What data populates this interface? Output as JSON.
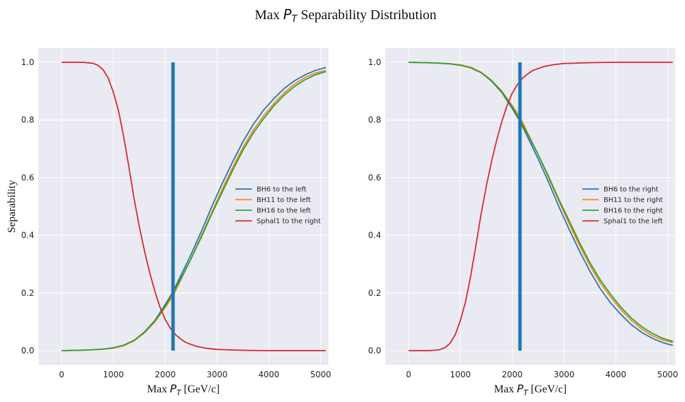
{
  "figure": {
    "suptitle_prefix": "Max ",
    "suptitle_var": "P",
    "suptitle_sub": "T",
    "suptitle_suffix": " Separability Distribution"
  },
  "colors": {
    "BH6": "#1f77b4",
    "BH11": "#ff7f0e",
    "BH16": "#2ca02c",
    "Sphal1": "#d62728",
    "cut": "#1f77b4",
    "panel_bg": "#eaeaf2",
    "grid": "#ffffff"
  },
  "chart_data": [
    {
      "type": "line",
      "xlabel_prefix": "Max ",
      "xlabel_var": "P",
      "xlabel_sub": "T",
      "xlabel_suffix": " [GeV/c]",
      "ylabel": "Separability",
      "xlim": [
        -450,
        5150
      ],
      "ylim": [
        -0.05,
        1.05
      ],
      "xticks": [
        0,
        1000,
        2000,
        3000,
        4000,
        5000
      ],
      "yticks": [
        0.0,
        0.2,
        0.4,
        0.6,
        0.8,
        1.0
      ],
      "xtick_labels": [
        "0",
        "1000",
        "2000",
        "3000",
        "4000",
        "5000"
      ],
      "ytick_labels": [
        "0.0",
        "0.2",
        "0.4",
        "0.6",
        "0.8",
        "1.0"
      ],
      "grid": true,
      "legend_position": "center-right",
      "cut_line": {
        "x": 2150,
        "y_range": [
          0.0,
          1.0
        ]
      },
      "series": [
        {
          "name": "BH6 to the left",
          "color_key": "BH6",
          "x": [
            0,
            500,
            800,
            1000,
            1200,
            1400,
            1600,
            1800,
            2000,
            2150,
            2300,
            2500,
            2700,
            2900,
            3100,
            3300,
            3500,
            3700,
            3900,
            4100,
            4300,
            4500,
            4700,
            4900,
            5100
          ],
          "y": [
            0.0,
            0.002,
            0.005,
            0.009,
            0.018,
            0.035,
            0.065,
            0.105,
            0.16,
            0.205,
            0.26,
            0.335,
            0.415,
            0.5,
            0.58,
            0.655,
            0.725,
            0.785,
            0.835,
            0.875,
            0.91,
            0.937,
            0.957,
            0.972,
            0.982
          ]
        },
        {
          "name": "BH11 to the left",
          "color_key": "BH11",
          "x": [
            0,
            500,
            800,
            1000,
            1200,
            1400,
            1600,
            1800,
            2000,
            2150,
            2300,
            2500,
            2700,
            2900,
            3100,
            3300,
            3500,
            3700,
            3900,
            4100,
            4300,
            4500,
            4700,
            4900,
            5100
          ],
          "y": [
            0.0,
            0.002,
            0.005,
            0.009,
            0.017,
            0.034,
            0.062,
            0.1,
            0.15,
            0.19,
            0.245,
            0.32,
            0.4,
            0.48,
            0.56,
            0.635,
            0.705,
            0.765,
            0.815,
            0.858,
            0.895,
            0.925,
            0.948,
            0.963,
            0.972
          ]
        },
        {
          "name": "BH16 to the left",
          "color_key": "BH16",
          "x": [
            0,
            500,
            800,
            1000,
            1200,
            1400,
            1600,
            1800,
            2000,
            2150,
            2300,
            2500,
            2700,
            2900,
            3100,
            3300,
            3500,
            3700,
            3900,
            4100,
            4300,
            4500,
            4700,
            4900,
            5100
          ],
          "y": [
            0.0,
            0.002,
            0.005,
            0.01,
            0.019,
            0.036,
            0.064,
            0.103,
            0.155,
            0.2,
            0.25,
            0.32,
            0.395,
            0.475,
            0.55,
            0.625,
            0.695,
            0.755,
            0.805,
            0.85,
            0.887,
            0.917,
            0.94,
            0.957,
            0.968
          ]
        },
        {
          "name": "Sphal1 to the right",
          "color_key": "Sphal1",
          "x": [
            0,
            400,
            600,
            700,
            800,
            900,
            1000,
            1100,
            1200,
            1300,
            1400,
            1500,
            1600,
            1700,
            1800,
            1900,
            2000,
            2100,
            2200,
            2300,
            2400,
            2600,
            2800,
            3000,
            3500,
            4000,
            5100
          ],
          "y": [
            1.0,
            1.0,
            0.997,
            0.99,
            0.975,
            0.945,
            0.895,
            0.83,
            0.74,
            0.635,
            0.525,
            0.43,
            0.345,
            0.27,
            0.205,
            0.15,
            0.107,
            0.077,
            0.055,
            0.04,
            0.028,
            0.015,
            0.008,
            0.004,
            0.001,
            0.0,
            0.0
          ]
        }
      ]
    },
    {
      "type": "line",
      "xlabel_prefix": "Max ",
      "xlabel_var": "P",
      "xlabel_sub": "T",
      "xlabel_suffix": " [GeV/c]",
      "ylabel": "",
      "xlim": [
        -450,
        5150
      ],
      "ylim": [
        -0.05,
        1.05
      ],
      "xticks": [
        0,
        1000,
        2000,
        3000,
        4000,
        5000
      ],
      "yticks": [
        0.0,
        0.2,
        0.4,
        0.6,
        0.8,
        1.0
      ],
      "xtick_labels": [
        "0",
        "1000",
        "2000",
        "3000",
        "4000",
        "5000"
      ],
      "ytick_labels": [
        "0.0",
        "0.2",
        "0.4",
        "0.6",
        "0.8",
        "1.0"
      ],
      "grid": true,
      "legend_position": "center-right",
      "cut_line": {
        "x": 2150,
        "y_range": [
          0.0,
          1.0
        ]
      },
      "series": [
        {
          "name": "BH6 to the right",
          "color_key": "BH6",
          "x": [
            0,
            500,
            800,
            1000,
            1200,
            1400,
            1600,
            1800,
            2000,
            2150,
            2300,
            2500,
            2700,
            2900,
            3100,
            3300,
            3500,
            3700,
            3900,
            4100,
            4300,
            4500,
            4700,
            4900,
            5100
          ],
          "y": [
            1.0,
            0.998,
            0.995,
            0.991,
            0.982,
            0.965,
            0.935,
            0.895,
            0.84,
            0.795,
            0.74,
            0.665,
            0.585,
            0.5,
            0.42,
            0.345,
            0.275,
            0.215,
            0.165,
            0.125,
            0.09,
            0.063,
            0.043,
            0.028,
            0.018
          ]
        },
        {
          "name": "BH11 to the right",
          "color_key": "BH11",
          "x": [
            0,
            500,
            800,
            1000,
            1200,
            1400,
            1600,
            1800,
            2000,
            2150,
            2300,
            2500,
            2700,
            2900,
            3100,
            3300,
            3500,
            3700,
            3900,
            4100,
            4300,
            4500,
            4700,
            4900,
            5100
          ],
          "y": [
            1.0,
            0.998,
            0.995,
            0.991,
            0.983,
            0.966,
            0.938,
            0.9,
            0.85,
            0.81,
            0.755,
            0.68,
            0.6,
            0.52,
            0.44,
            0.365,
            0.295,
            0.235,
            0.185,
            0.142,
            0.105,
            0.075,
            0.052,
            0.037,
            0.028
          ]
        },
        {
          "name": "BH16 to the right",
          "color_key": "BH16",
          "x": [
            0,
            500,
            800,
            1000,
            1200,
            1400,
            1600,
            1800,
            2000,
            2150,
            2300,
            2500,
            2700,
            2900,
            3100,
            3300,
            3500,
            3700,
            3900,
            4100,
            4300,
            4500,
            4700,
            4900,
            5100
          ],
          "y": [
            1.0,
            0.998,
            0.995,
            0.99,
            0.981,
            0.964,
            0.936,
            0.897,
            0.845,
            0.8,
            0.75,
            0.68,
            0.605,
            0.525,
            0.45,
            0.375,
            0.305,
            0.245,
            0.195,
            0.15,
            0.113,
            0.083,
            0.06,
            0.043,
            0.032
          ]
        },
        {
          "name": "Sphal1 to the left",
          "color_key": "Sphal1",
          "x": [
            0,
            400,
            600,
            700,
            800,
            900,
            1000,
            1100,
            1200,
            1300,
            1400,
            1500,
            1600,
            1700,
            1800,
            1900,
            2000,
            2100,
            2200,
            2300,
            2400,
            2600,
            2800,
            3000,
            3500,
            4000,
            5100
          ],
          "y": [
            0.0,
            0.0,
            0.003,
            0.01,
            0.025,
            0.055,
            0.105,
            0.17,
            0.26,
            0.365,
            0.475,
            0.57,
            0.655,
            0.73,
            0.795,
            0.85,
            0.893,
            0.923,
            0.945,
            0.96,
            0.972,
            0.985,
            0.992,
            0.996,
            0.999,
            1.0,
            1.0
          ]
        }
      ]
    }
  ]
}
